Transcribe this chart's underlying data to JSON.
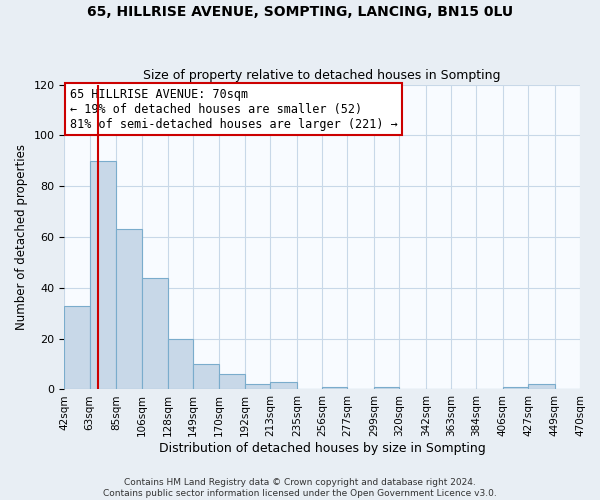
{
  "title": "65, HILLRISE AVENUE, SOMPTING, LANCING, BN15 0LU",
  "subtitle": "Size of property relative to detached houses in Sompting",
  "xlabel": "Distribution of detached houses by size in Sompting",
  "ylabel": "Number of detached properties",
  "bin_edges": [
    42,
    63,
    85,
    106,
    128,
    149,
    170,
    192,
    213,
    235,
    256,
    277,
    299,
    320,
    342,
    363,
    384,
    406,
    427,
    449,
    470
  ],
  "bin_labels": [
    "42sqm",
    "63sqm",
    "85sqm",
    "106sqm",
    "128sqm",
    "149sqm",
    "170sqm",
    "192sqm",
    "213sqm",
    "235sqm",
    "256sqm",
    "277sqm",
    "299sqm",
    "320sqm",
    "342sqm",
    "363sqm",
    "384sqm",
    "406sqm",
    "427sqm",
    "449sqm",
    "470sqm"
  ],
  "bar_heights": [
    33,
    90,
    63,
    44,
    20,
    10,
    6,
    2,
    3,
    0,
    1,
    0,
    1,
    0,
    0,
    0,
    0,
    1,
    2,
    0
  ],
  "bar_color": "#c8d8e8",
  "bar_edge_color": "#7aaccc",
  "vline_x": 70,
  "vline_color": "#cc0000",
  "annotation_title": "65 HILLRISE AVENUE: 70sqm",
  "annotation_line1": "← 19% of detached houses are smaller (52)",
  "annotation_line2": "81% of semi-detached houses are larger (221) →",
  "annotation_box_color": "#ffffff",
  "annotation_box_edge_color": "#cc0000",
  "ylim": [
    0,
    120
  ],
  "yticks": [
    0,
    20,
    40,
    60,
    80,
    100,
    120
  ],
  "footer1": "Contains HM Land Registry data © Crown copyright and database right 2024.",
  "footer2": "Contains public sector information licensed under the Open Government Licence v3.0.",
  "background_color": "#e8eef4",
  "plot_bg_color": "#f8fbff",
  "grid_color": "#c8d8e8",
  "title_fontsize": 10,
  "subtitle_fontsize": 9
}
